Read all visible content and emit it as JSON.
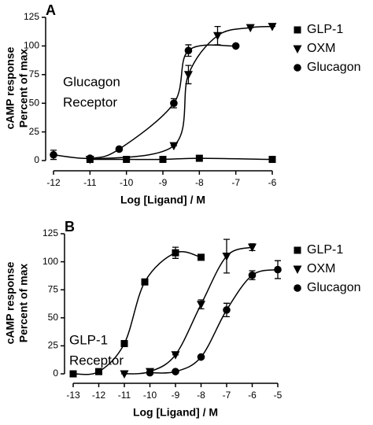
{
  "chart_data": [
    {
      "type": "scatter",
      "panel": "A",
      "ylabel": [
        "cAMP response",
        "Percent of max"
      ],
      "xlabel": "Log [Ligand] / M",
      "annotation": [
        "Glucagon",
        "Receptor"
      ],
      "xlim": [
        -12,
        -6
      ],
      "xticks": [
        -12,
        -11,
        -10,
        -9,
        -8,
        -7,
        -6
      ],
      "ylim": [
        0,
        125
      ],
      "yticks": [
        0,
        25,
        50,
        75,
        100,
        125
      ],
      "series": [
        {
          "name": "GLP-1",
          "marker": "square",
          "color": "#000000",
          "x": [
            -11,
            -10,
            -9,
            -8,
            -6
          ],
          "values": [
            1,
            1,
            1,
            2,
            1
          ],
          "errors": [
            0,
            0,
            0,
            0,
            0
          ]
        },
        {
          "name": "OXM",
          "marker": "triangle-down",
          "color": "#000000",
          "x": [
            -11,
            -8.7,
            -8.3,
            -7.5,
            -6.6,
            -6
          ],
          "values": [
            1,
            13,
            75,
            109,
            116,
            117
          ],
          "errors": [
            0,
            0,
            8,
            8,
            0,
            0
          ]
        },
        {
          "name": "Glucagon",
          "marker": "circle",
          "color": "#000000",
          "x": [
            -12,
            -11,
            -10.2,
            -8.7,
            -8.3,
            -7
          ],
          "values": [
            5,
            2,
            10,
            50,
            96,
            100
          ],
          "errors": [
            4,
            0,
            0,
            4,
            5,
            0
          ]
        }
      ]
    },
    {
      "type": "scatter",
      "panel": "B",
      "ylabel": [
        "cAMP response",
        "Percent of max"
      ],
      "xlabel": "Log [Ligand] / M",
      "annotation": [
        "GLP-1",
        "Receptor"
      ],
      "xlim": [
        -13,
        -5
      ],
      "xticks": [
        -13,
        -12,
        -11,
        -10,
        -9,
        -8,
        -7,
        -6,
        -5
      ],
      "ylim": [
        0,
        125
      ],
      "yticks": [
        0,
        25,
        50,
        75,
        100,
        125
      ],
      "series": [
        {
          "name": "GLP-1",
          "marker": "square",
          "color": "#000000",
          "x": [
            -13,
            -12,
            -11,
            -10.2,
            -9,
            -8
          ],
          "values": [
            0,
            2,
            27,
            82,
            108,
            104
          ],
          "errors": [
            0,
            0,
            0,
            0,
            5,
            0
          ]
        },
        {
          "name": "OXM",
          "marker": "triangle-down",
          "color": "#000000",
          "x": [
            -11,
            -10,
            -9,
            -8,
            -7,
            -6
          ],
          "values": [
            0,
            2,
            17,
            62,
            105,
            113
          ],
          "errors": [
            0,
            0,
            0,
            4,
            15,
            3
          ]
        },
        {
          "name": "Glucagon",
          "marker": "circle",
          "color": "#000000",
          "x": [
            -10,
            -9,
            -8,
            -7,
            -6,
            -5
          ],
          "values": [
            1,
            2,
            15,
            57,
            88,
            93
          ],
          "errors": [
            0,
            0,
            0,
            6,
            4,
            8
          ]
        }
      ]
    }
  ]
}
